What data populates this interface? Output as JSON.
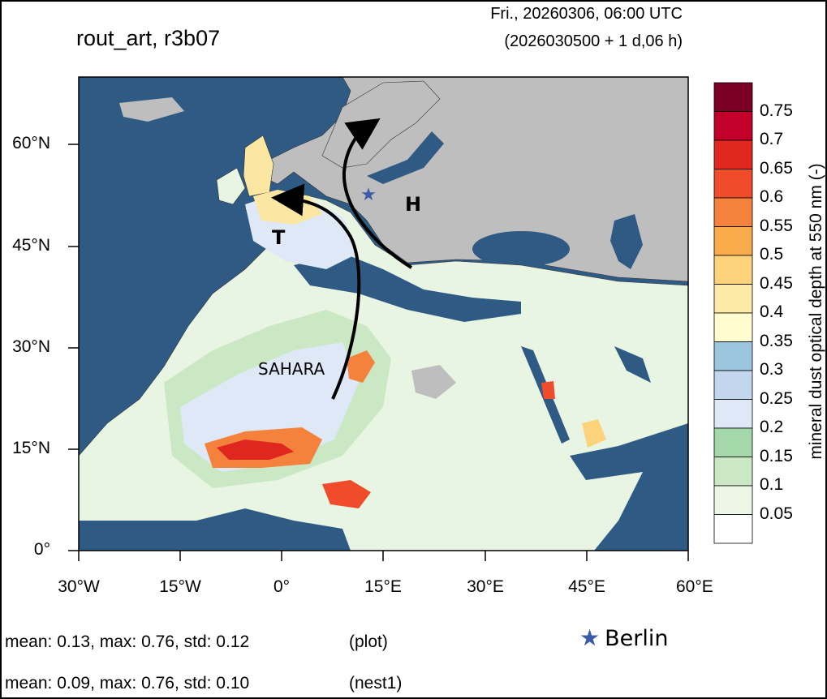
{
  "header": {
    "run_title": "rout_art, r3b07",
    "valid_time": "Fri., 20260306, 06:00 UTC",
    "init_time": "(2026030500 + 1 d,06 h)"
  },
  "map": {
    "lat_ticks": [
      "60°N",
      "45°N",
      "30°N",
      "15°N",
      "0°"
    ],
    "lon_ticks": [
      "30°W",
      "15°W",
      "0°",
      "15°E",
      "30°E",
      "45°E",
      "60°E"
    ],
    "labels": {
      "sahara": "SAHARA",
      "trough": "T",
      "high": "H"
    },
    "colors": {
      "ocean": "#2E5A84",
      "outside_domain_land": "#BEBEBE",
      "arrow": "#000000",
      "berlin_star": "#3B5BA9"
    }
  },
  "colorbar": {
    "label": "mineral dust optical depth at 550 nm (-)",
    "levels": [
      "0.75",
      "0.7",
      "0.65",
      "0.6",
      "0.55",
      "0.5",
      "0.45",
      "0.4",
      "0.35",
      "0.3",
      "0.25",
      "0.2",
      "0.15",
      "0.1",
      "0.05"
    ],
    "colors": [
      "#7A0026",
      "#C2002A",
      "#E0271F",
      "#F04B2A",
      "#F5823C",
      "#F9AB4C",
      "#FCD27A",
      "#FDEAA6",
      "#FFFCCF",
      "#9CC6DE",
      "#C2D6EE",
      "#DEE8F6",
      "#A4D8AA",
      "#CBE8C4",
      "#EDF7E6",
      "#FFFFFF"
    ]
  },
  "stats": {
    "plot_line": "mean: 0.13, max: 0.76, std: 0.12",
    "plot_tag": "(plot)",
    "nest_line": "mean: 0.09, max: 0.76, std: 0.10",
    "nest_tag": "(nest1)"
  },
  "legend": {
    "berlin_label": "Berlin",
    "star_symbol": "★"
  }
}
